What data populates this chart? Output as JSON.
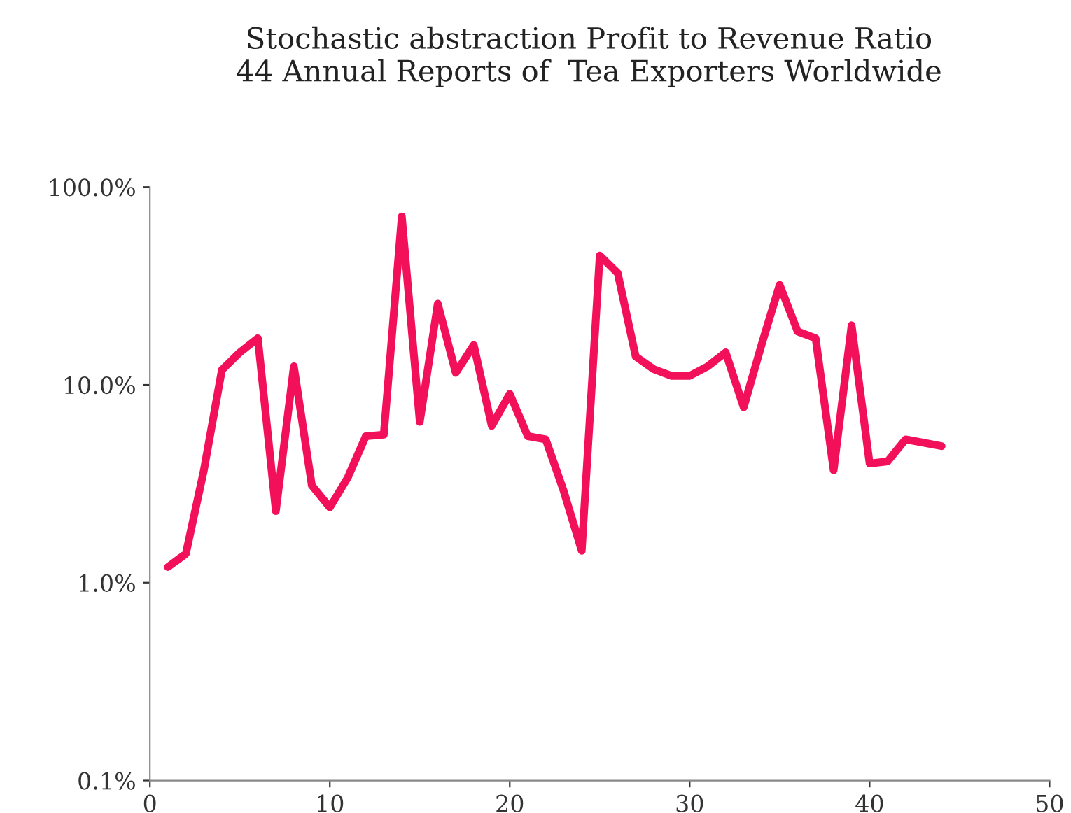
{
  "chart_data": {
    "type": "line",
    "title": "Stochastic abstraction Profit to Revenue Ratio\n44 Annual Reports of  Tea Exporters Worldwide",
    "x": [
      1,
      2,
      3,
      4,
      5,
      6,
      7,
      8,
      9,
      10,
      11,
      12,
      13,
      14,
      15,
      16,
      17,
      18,
      19,
      20,
      21,
      22,
      23,
      24,
      25,
      26,
      27,
      28,
      29,
      30,
      31,
      32,
      33,
      34,
      35,
      36,
      37,
      38,
      39,
      40,
      41,
      42,
      43,
      44
    ],
    "series": [
      {
        "color": "#f2105a",
        "values": [
          1.2,
          1.4,
          3.7,
          11.9,
          14.6,
          17.2,
          2.3,
          12.4,
          3.1,
          2.4,
          3.4,
          5.5,
          5.6,
          71,
          6.5,
          25.7,
          11.5,
          15.9,
          6.2,
          9.0,
          5.5,
          5.3,
          2.9,
          1.45,
          45,
          36.7,
          13.9,
          12,
          11.1,
          11.1,
          12.4,
          14.6,
          7.7,
          16,
          32,
          18.6,
          17.2,
          3.7,
          20,
          4.0,
          4.1,
          5.3,
          5.1,
          4.9
        ]
      }
    ],
    "log": "y",
    "xlim": [
      0,
      50
    ],
    "xticks": [
      0,
      10,
      20,
      30,
      40,
      50
    ],
    "ylim": [
      0.1,
      100
    ],
    "yticks": [
      {
        "value": 0.1,
        "label": "0.1%"
      },
      {
        "value": 1,
        "label": "1.0%"
      },
      {
        "value": 10,
        "label": "10.0%"
      },
      {
        "value": 100,
        "label": "100.0%"
      }
    ],
    "grid": false,
    "legend": false,
    "marker": "none",
    "line_style": "solid"
  }
}
